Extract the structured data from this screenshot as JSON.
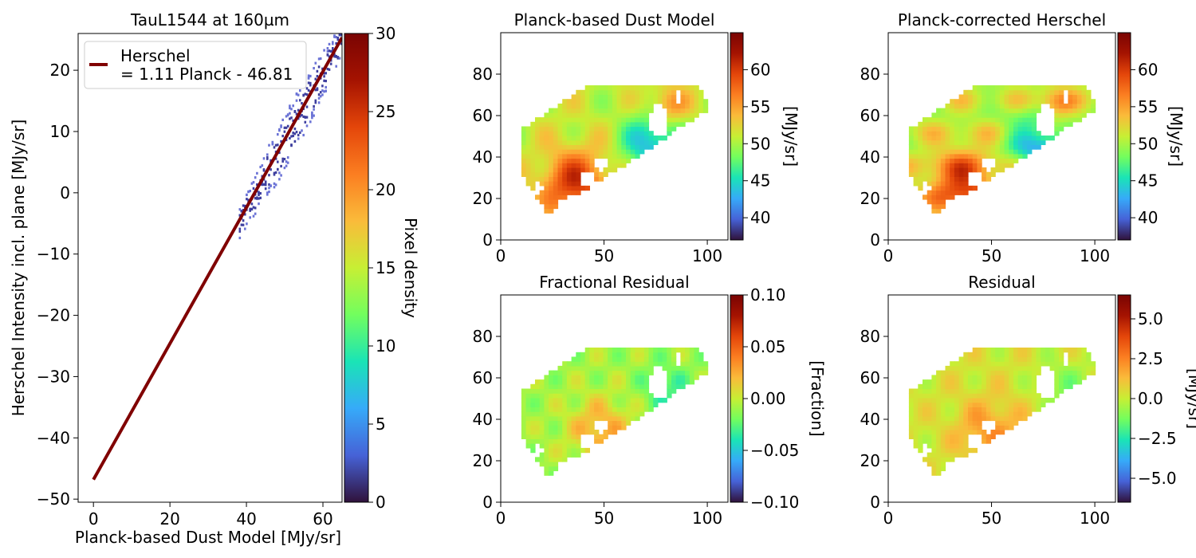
{
  "colors": {
    "turbo": [
      "#30123b",
      "#4662d7",
      "#36aaf9",
      "#1ae4b6",
      "#72fe5e",
      "#c7ef34",
      "#fabb3a",
      "#fb7e21",
      "#e4460a",
      "#a51301",
      "#7a0403"
    ],
    "fit_line": "#800000",
    "hist_fill": "#3e3f9f",
    "hist_edge": "#6b73d6"
  },
  "chart_data": [
    {
      "id": "scatter",
      "type": "heatmap",
      "title": "TauL1544 at 160µm",
      "xlabel": "Planck-based Dust Model [MJy/sr]",
      "ylabel": "Herschel Intensity incl. plane [MJy/sr]",
      "xlim": [
        -4,
        65
      ],
      "ylim": [
        -50.5,
        26
      ],
      "xticks": [
        "0",
        "20",
        "40",
        "60"
      ],
      "xtick_values": [
        0,
        20,
        40,
        60
      ],
      "yticks": [
        "20",
        "10",
        "0",
        "−10",
        "−20",
        "−30",
        "−40",
        "−50"
      ],
      "ytick_values": [
        20,
        10,
        0,
        -10,
        -20,
        -30,
        -40,
        -50
      ],
      "fit": {
        "slope": 1.11,
        "intercept": -46.81,
        "x_range": [
          0,
          65
        ]
      },
      "legend": {
        "label_line1": "Herschel",
        "label_line2": "= 1.11 Planck - 46.81",
        "placement": "top-left"
      },
      "density_band": {
        "x_range": [
          38,
          65
        ],
        "halfwidth": 2.0
      },
      "colorbar": {
        "label": "Pixel density",
        "range": [
          0,
          30
        ],
        "ticks": [
          "0",
          "5",
          "10",
          "15",
          "20",
          "25",
          "30"
        ],
        "tick_values": [
          0,
          5,
          10,
          15,
          20,
          25,
          30
        ]
      }
    },
    {
      "id": "planck",
      "type": "heatmap",
      "title": "Planck-based Dust Model",
      "xlim": [
        0,
        110
      ],
      "ylim": [
        0,
        100
      ],
      "xticks": [
        "0",
        "50",
        "100"
      ],
      "xtick_values": [
        0,
        50,
        100
      ],
      "yticks": [
        "0",
        "20",
        "40",
        "60",
        "80"
      ],
      "ytick_values": [
        0,
        20,
        40,
        60,
        80
      ],
      "colorbar": {
        "label": "[MJy/sr]",
        "range": [
          37,
          65
        ],
        "ticks": [
          "40",
          "45",
          "50",
          "55",
          "60"
        ],
        "tick_values": [
          40,
          45,
          50,
          55,
          60
        ]
      }
    },
    {
      "id": "corrected",
      "type": "heatmap",
      "title": "Planck-corrected Herschel",
      "xlim": [
        0,
        110
      ],
      "ylim": [
        0,
        100
      ],
      "xticks": [
        "0",
        "50",
        "100"
      ],
      "xtick_values": [
        0,
        50,
        100
      ],
      "yticks": [
        "0",
        "20",
        "40",
        "60",
        "80"
      ],
      "ytick_values": [
        0,
        20,
        40,
        60,
        80
      ],
      "colorbar": {
        "label": "[MJy/sr]",
        "range": [
          37,
          65
        ],
        "ticks": [
          "40",
          "45",
          "50",
          "55",
          "60"
        ],
        "tick_values": [
          40,
          45,
          50,
          55,
          60
        ]
      }
    },
    {
      "id": "fracres",
      "type": "heatmap",
      "title": "Fractional Residual",
      "xlim": [
        0,
        110
      ],
      "ylim": [
        0,
        100
      ],
      "xticks": [
        "0",
        "50",
        "100"
      ],
      "xtick_values": [
        0,
        50,
        100
      ],
      "yticks": [
        "0",
        "20",
        "40",
        "60",
        "80"
      ],
      "ytick_values": [
        0,
        20,
        40,
        60,
        80
      ],
      "colorbar": {
        "label": "[Fraction]",
        "range": [
          -0.1,
          0.1
        ],
        "ticks": [
          "0.10",
          "0.05",
          "0.00",
          "−0.05",
          "−0.10"
        ],
        "tick_values": [
          0.1,
          0.05,
          0.0,
          -0.05,
          -0.1
        ]
      }
    },
    {
      "id": "residual",
      "type": "heatmap",
      "title": "Residual",
      "xlim": [
        0,
        110
      ],
      "ylim": [
        0,
        100
      ],
      "xticks": [
        "0",
        "50",
        "100"
      ],
      "xtick_values": [
        0,
        50,
        100
      ],
      "yticks": [
        "0",
        "20",
        "40",
        "60",
        "80"
      ],
      "ytick_values": [
        0,
        20,
        40,
        60,
        80
      ],
      "colorbar": {
        "label": "[MJy/sr]",
        "range": [
          -6.5,
          6.5
        ],
        "ticks": [
          "5.0",
          "2.5",
          "0.0",
          "−2.5",
          "−5.0"
        ],
        "tick_values": [
          5.0,
          2.5,
          0.0,
          -2.5,
          -5.0
        ]
      }
    }
  ]
}
